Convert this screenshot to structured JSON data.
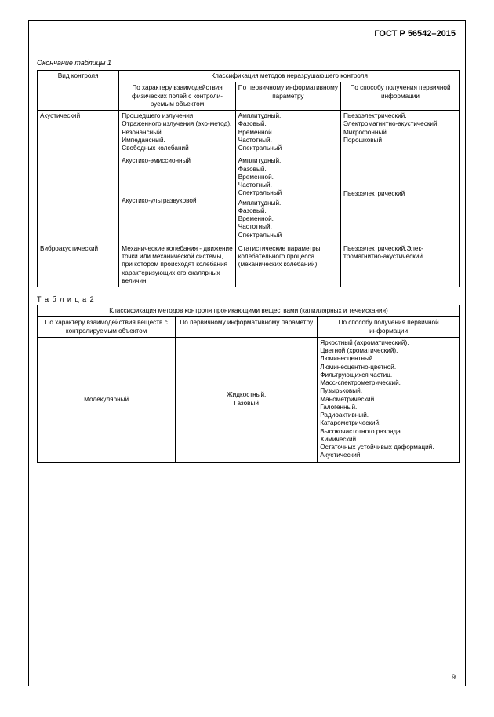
{
  "doc_id": "ГОСТ Р 56542–2015",
  "t1_caption": "Окончание таблицы 1",
  "t1": {
    "header_top": "Классификация методов неразрушающего контроля",
    "h_col1": "Вид контроля",
    "h_col2": "По характеру взаимодействия физических полей с контроли­руемым объектом",
    "h_col3": "По первичному информатив­ному параметру",
    "h_col4": "По способу получения первич­ной информации",
    "r1": {
      "c1": "Акустический",
      "c2a": "Прошедшего излучения.\nОтраженного излучения (эхо-метод).\nРезонансный.\nИмпедансный.\nСвободных колебаний",
      "c2b": "Акустико-эмиссионный",
      "c2c": "Акустико-ультразвуковой",
      "c3a": "Амплитудный.\nФазовый.\nВременной.\nЧастотный.\nСпектральный",
      "c3b": "Амплитудный.\nФазовый.\nВременной.\nЧастотный.\nСпектральный",
      "c3c": "Амплитудный.\nФазовый.\nВременной.\nЧастотный.\nСпектральный",
      "c4a": "Пьезоэлектрический.\nЭлектромагнитно-акустический.\nМикрофонный.\nПорошковый",
      "c4b": "",
      "c4c": "Пьезоэлектрический"
    },
    "r2": {
      "c1": "Виброакустический",
      "c2": "Механические колебания - движение точки или ме­ханической системы, при котором происходят коле­бания характеризующих его скалярных величин",
      "c3": "Статистические пара­метры колебательного процесса (механических колебаний)",
      "c4": "Пьезоэлектрический.Элек­тромагнитно-акустический"
    }
  },
  "t2_caption": "Т а б л и ц а  2",
  "t2": {
    "header_top": "Классификация методов контроля проникающими веществами (капиллярных и течеискания)",
    "h_colA": "По характеру взаимодействия веществ с контролируемым объектом",
    "h_colB": "По первичному информативному параметру",
    "h_colC": "По способу получения первичной информации",
    "r1": {
      "cA": "Молекулярный",
      "cB": "Жидкостный.\nГазовый",
      "cC": "Яркостный (ахроматический).\nЦветной (хроматический).\nЛюминесцентный.\nЛюминесцентно-цветной.\nФильтрующихся частиц.\nМасс-спектрометрический.\nПузырьковый.\nМанометрический.\nГалогенный.\nРадиоактивный.\nКатарометрический.\nВысокочастотного разряда.\nХимический.\nОстаточных устойчивых деформаций.\nАкустический"
    }
  },
  "page_number": "9"
}
